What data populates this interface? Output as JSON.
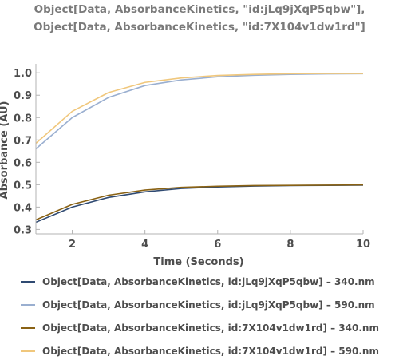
{
  "chart_data": {
    "type": "line",
    "title_lines": [
      "Object[Data, AbsorbanceKinetics, \"id:jLq9jXqP5qbw\"],",
      "Object[Data, AbsorbanceKinetics, \"id:7X104v1dw1rd\"]"
    ],
    "xlabel": "Time  (Seconds)",
    "ylabel": "Absorbance  (AU)",
    "xlim": [
      1,
      10
    ],
    "ylim": [
      0.28,
      1.04
    ],
    "x_ticks": [
      2,
      4,
      6,
      8,
      10
    ],
    "y_ticks": [
      0.3,
      0.4,
      0.5,
      0.6,
      0.7,
      0.8,
      0.9,
      1.0
    ],
    "y_tick_labels": [
      "0.3",
      "0.4",
      "0.5",
      "0.6",
      "0.7",
      "0.8",
      "0.9",
      "1.0"
    ],
    "grid": false,
    "legend_placement": "bottom",
    "x": [
      1,
      2,
      3,
      4,
      5,
      6,
      7,
      8,
      9,
      10
    ],
    "series": [
      {
        "name": "Object[Data, AbsorbanceKinetics, id:jLq9jXqP5qbw] – 340.nm",
        "color": "#2f4a72",
        "values": [
          0.332,
          0.4,
          0.443,
          0.468,
          0.483,
          0.49,
          0.494,
          0.496,
          0.497,
          0.498
        ]
      },
      {
        "name": "Object[Data, AbsorbanceKinetics, id:jLq9jXqP5qbw] – 590.nm",
        "color": "#9aafd0",
        "values": [
          0.66,
          0.8,
          0.89,
          0.943,
          0.968,
          0.982,
          0.989,
          0.993,
          0.995,
          0.996
        ]
      },
      {
        "name": "Object[Data, AbsorbanceKinetics, id:7X104v1dw1rd] – 340.nm",
        "color": "#8a6214",
        "values": [
          0.343,
          0.412,
          0.453,
          0.476,
          0.488,
          0.493,
          0.496,
          0.497,
          0.498,
          0.499
        ]
      },
      {
        "name": "Object[Data, AbsorbanceKinetics, id:7X104v1dw1rd] – 590.nm",
        "color": "#f0c77c",
        "values": [
          0.685,
          0.828,
          0.912,
          0.957,
          0.977,
          0.988,
          0.993,
          0.996,
          0.997,
          0.997
        ]
      }
    ]
  }
}
